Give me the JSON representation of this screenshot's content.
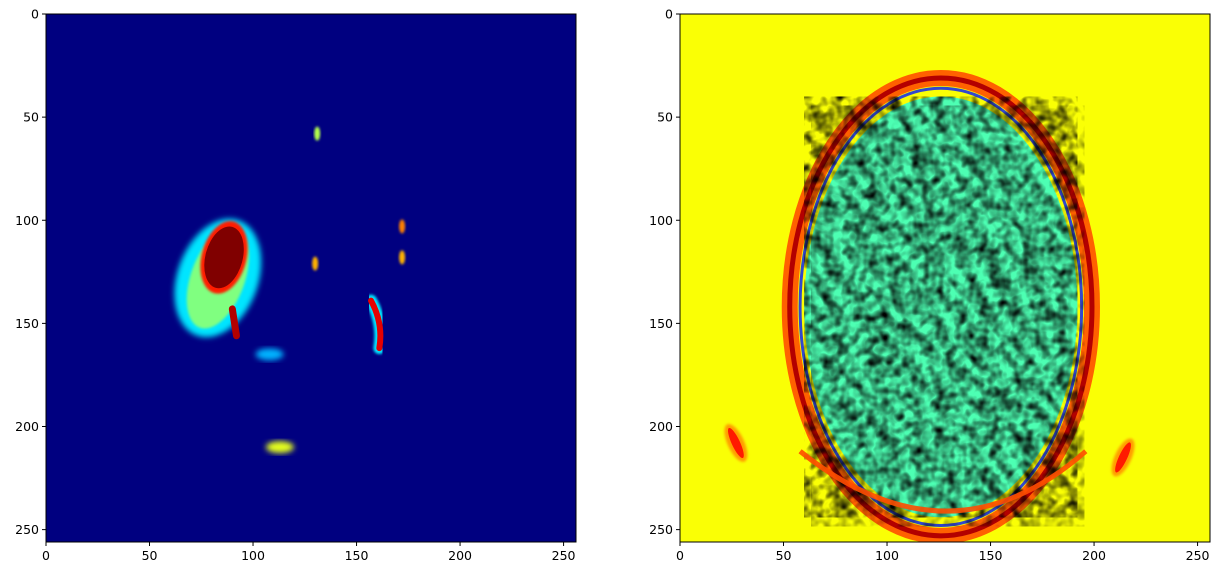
{
  "chart_data": [
    {
      "type": "heatmap",
      "title": "",
      "xlabel": "",
      "ylabel": "",
      "colormap": "jet",
      "grid": false,
      "xlim": [
        0,
        256
      ],
      "ylim": [
        256,
        0
      ],
      "x_ticks": [
        0,
        50,
        100,
        150,
        200,
        250
      ],
      "y_ticks": [
        0,
        50,
        100,
        150,
        200,
        250
      ],
      "background_value": 0.0,
      "regions": [
        {
          "kind": "lesion-shell",
          "cx": 83,
          "cy": 128,
          "rx": 13,
          "ry": 27,
          "value": 0.5
        },
        {
          "kind": "lesion-core",
          "cx": 86,
          "cy": 118,
          "rx": 9,
          "ry": 18,
          "value": 1.0
        },
        {
          "kind": "tail",
          "x": [
            90,
            92
          ],
          "y": [
            143,
            156
          ],
          "value": 0.95
        },
        {
          "kind": "crescent",
          "x": [
            157,
            163,
            161
          ],
          "y": [
            139,
            150,
            162
          ],
          "value": 0.9
        },
        {
          "kind": "spot",
          "cx": 131,
          "cy": 58,
          "value": 0.55
        },
        {
          "kind": "spot",
          "cx": 172,
          "cy": 103,
          "value": 0.75
        },
        {
          "kind": "spot",
          "cx": 172,
          "cy": 118,
          "value": 0.7
        },
        {
          "kind": "spot",
          "cx": 130,
          "cy": 121,
          "value": 0.7
        },
        {
          "kind": "smear",
          "cx": 113,
          "cy": 210,
          "value": 0.6
        },
        {
          "kind": "smear",
          "cx": 108,
          "cy": 165,
          "value": 0.3
        }
      ]
    },
    {
      "type": "heatmap",
      "title": "",
      "xlabel": "",
      "ylabel": "",
      "colormap": "jet",
      "grid": false,
      "xlim": [
        0,
        256
      ],
      "ylim": [
        256,
        0
      ],
      "x_ticks": [
        0,
        50,
        100,
        150,
        200,
        250
      ],
      "y_ticks": [
        0,
        50,
        100,
        150,
        200,
        250
      ],
      "background_value": 0.62,
      "regions": [
        {
          "kind": "skull-ring",
          "cx": 126,
          "cy": 142,
          "rx": 73,
          "ry": 111,
          "value": 0.95
        },
        {
          "kind": "brain-texture",
          "cx": 126,
          "cy": 142,
          "rx": 66,
          "ry": 102,
          "value": 0.45
        },
        {
          "kind": "ear",
          "cx": 27,
          "cy": 208,
          "value": 0.85
        },
        {
          "kind": "ear",
          "cx": 214,
          "cy": 215,
          "value": 0.85
        },
        {
          "kind": "lower-arc",
          "cx": 130,
          "cy": 230,
          "value": 0.8
        }
      ]
    }
  ]
}
